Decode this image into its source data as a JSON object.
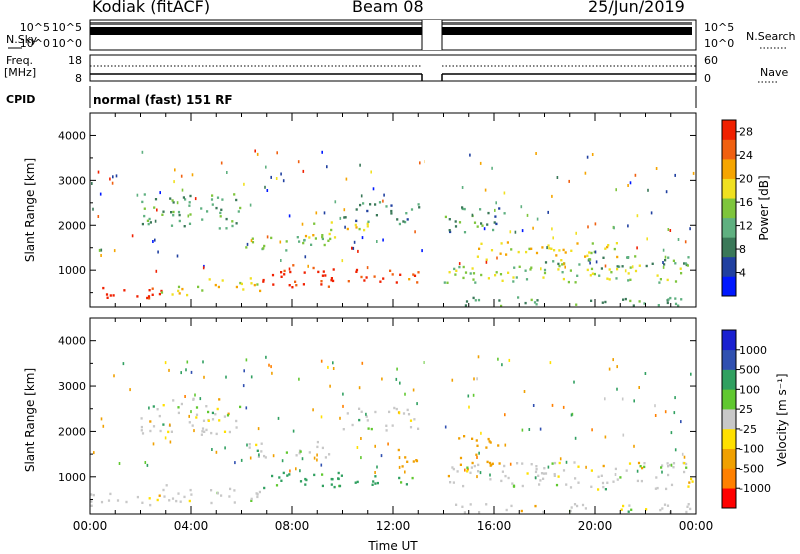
{
  "header": {
    "title": "Kodiak (fitACF)",
    "beam": "Beam 08",
    "date": "25/Jun/2019"
  },
  "param_panels": {
    "nsky_label": "N.Sky",
    "nsearch_label": "N.Search",
    "freq_label_1": "Freq.",
    "freq_label_2": "[MHz]",
    "nave_label": "Nave",
    "cpid_label": "CPID",
    "cpid_text": "normal (fast) 151 RF",
    "noise_ticks_left": [
      "10^5",
      "10^0"
    ],
    "noise_ticks_right": [
      "10^5",
      "10^0"
    ],
    "freq_ticks_left": [
      "18",
      "8"
    ],
    "nave_ticks_right": [
      "60",
      "0"
    ]
  },
  "colors": {
    "power": [
      "#0018ff",
      "#2040a0",
      "#3a7858",
      "#5fb080",
      "#7ec53c",
      "#f0e020",
      "#f5a500",
      "#f06010",
      "#f02000"
    ],
    "velocity": [
      "#ff0000",
      "#ff8000",
      "#f0a000",
      "#ffe000",
      "#c8c8c8",
      "#60c830",
      "#30a060",
      "#3050b0",
      "#1a20d0"
    ],
    "ground_scatter": "#c8c8c8"
  },
  "chart_data": [
    {
      "type": "heatmap",
      "name": "power",
      "ylabel": "Slant Range [km]",
      "xlabel": "",
      "xlim": [
        "00:00",
        "24:00"
      ],
      "ylim": [
        180,
        4500
      ],
      "yticks": [
        "1000",
        "2000",
        "3000",
        "4000"
      ],
      "xticks": [],
      "colorbar": {
        "label": "Power [dB]",
        "ticks": [
          "4",
          "8",
          "12",
          "16",
          "20",
          "24",
          "28"
        ],
        "range": [
          0,
          30
        ]
      },
      "data_gap": [
        "13:15",
        "13:55"
      ],
      "regions": [
        {
          "t0": 0.0,
          "t1": 2.8,
          "r0": 300,
          "r1": 620,
          "value": 28
        },
        {
          "t0": 2.8,
          "t1": 4.5,
          "r0": 400,
          "r1": 700,
          "value": 18
        },
        {
          "t0": 4.5,
          "t1": 6.8,
          "r0": 450,
          "r1": 800,
          "value": 20
        },
        {
          "t0": 6.8,
          "t1": 10.2,
          "r0": 600,
          "r1": 1100,
          "value": 28
        },
        {
          "t0": 9.5,
          "t1": 13.0,
          "r0": 700,
          "r1": 1000,
          "value": 26
        },
        {
          "t0": 6.0,
          "t1": 9.5,
          "r0": 1400,
          "r1": 1750,
          "value": 14
        },
        {
          "t0": 8.5,
          "t1": 11.0,
          "r0": 1700,
          "r1": 2100,
          "value": 17
        },
        {
          "t0": 2.0,
          "t1": 6.0,
          "r0": 1900,
          "r1": 2700,
          "value": 12
        },
        {
          "t0": 10.0,
          "t1": 13.0,
          "r0": 2000,
          "r1": 2500,
          "value": 9
        },
        {
          "t0": 14.0,
          "t1": 24.0,
          "r0": 180,
          "r1": 380,
          "value": 10
        },
        {
          "t0": 14.0,
          "t1": 24.0,
          "r0": 700,
          "r1": 1100,
          "value": 16
        },
        {
          "t0": 15.0,
          "t1": 21.0,
          "r0": 1200,
          "r1": 1600,
          "value": 19
        },
        {
          "t0": 18.0,
          "t1": 24.0,
          "r0": 1000,
          "r1": 1300,
          "value": 12
        },
        {
          "t0": 14.0,
          "t1": 16.5,
          "r0": 1800,
          "r1": 2400,
          "value": 10
        }
      ]
    },
    {
      "type": "heatmap",
      "name": "velocity",
      "ylabel": "Slant Range [km]",
      "xlabel": "Time UT",
      "xlim": [
        "00:00",
        "24:00"
      ],
      "ylim": [
        180,
        4500
      ],
      "yticks": [
        "1000",
        "2000",
        "3000",
        "4000"
      ],
      "xticks": [
        "00:00",
        "04:00",
        "08:00",
        "12:00",
        "16:00",
        "20:00",
        "00:00"
      ],
      "colorbar": {
        "label": "Velocity [m s⁻¹]",
        "ticks": [
          "1000",
          "500",
          "100",
          "25",
          "-25",
          "-100",
          "-500",
          "-1000"
        ]
      },
      "data_gap": [
        "13:15",
        "13:55"
      ],
      "regions": [
        {
          "t0": 0.0,
          "t1": 2.8,
          "r0": 300,
          "r1": 620,
          "value": 0
        },
        {
          "t0": 2.8,
          "t1": 6.8,
          "r0": 400,
          "r1": 800,
          "value": 0
        },
        {
          "t0": 6.8,
          "t1": 10.0,
          "r0": 700,
          "r1": 1100,
          "value": 150
        },
        {
          "t0": 9.5,
          "t1": 13.0,
          "r0": 750,
          "r1": 1000,
          "value": 200
        },
        {
          "t0": 6.0,
          "t1": 9.5,
          "r0": 1400,
          "r1": 1750,
          "value": 0
        },
        {
          "t0": 2.0,
          "t1": 6.0,
          "r0": 1900,
          "r1": 2700,
          "value": 0
        },
        {
          "t0": 10.0,
          "t1": 13.0,
          "r0": 2000,
          "r1": 2500,
          "value": 0
        },
        {
          "t0": 12.0,
          "t1": 13.0,
          "r0": 1200,
          "r1": 1600,
          "value": -300
        },
        {
          "t0": 14.5,
          "t1": 16.2,
          "r0": 1200,
          "r1": 1900,
          "value": -300
        },
        {
          "t0": 14.0,
          "t1": 24.0,
          "r0": 180,
          "r1": 380,
          "value": 0
        },
        {
          "t0": 14.0,
          "t1": 24.0,
          "r0": 700,
          "r1": 1300,
          "value": 0
        }
      ]
    }
  ]
}
